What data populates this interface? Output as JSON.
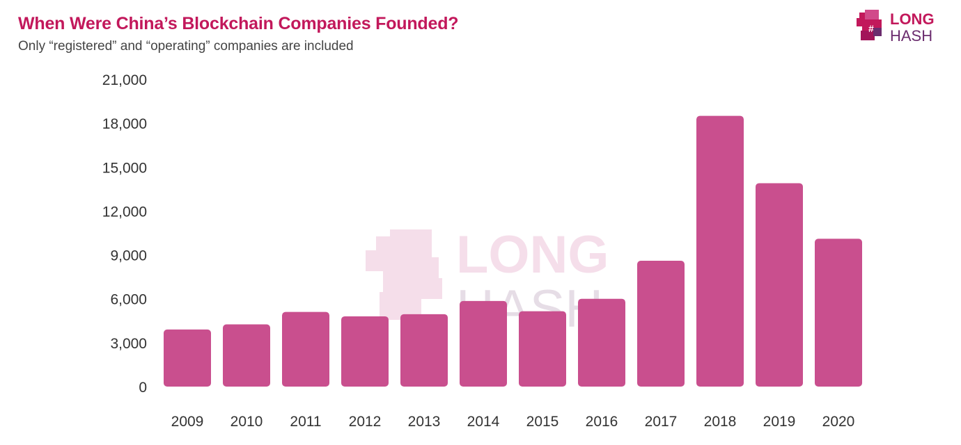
{
  "chart_data": {
    "type": "bar",
    "title": "When Were China’s Blockchain Companies Founded?",
    "subtitle": "Only “registered” and “operating” companies are included",
    "categories": [
      "2009",
      "2010",
      "2011",
      "2012",
      "2013",
      "2014",
      "2015",
      "2016",
      "2017",
      "2018",
      "2019",
      "2020"
    ],
    "values": [
      3900,
      4250,
      5100,
      4800,
      4950,
      5850,
      5150,
      6000,
      8600,
      18500,
      13900,
      10100
    ],
    "ylim": [
      0,
      21000
    ],
    "yticks": [
      0,
      3000,
      6000,
      9000,
      12000,
      15000,
      18000,
      21000
    ],
    "ytick_labels": [
      "0",
      "3,000",
      "6,000",
      "9,000",
      "12,000",
      "15,000",
      "18,000",
      "21,000"
    ],
    "xlabel": "",
    "ylabel": "",
    "grid": false,
    "bar_color": "#c94f8e",
    "title_color": "#c2185b"
  },
  "branding": {
    "logo_line1": "LONG",
    "logo_line2": "HASH",
    "logo_color": "#c2185b",
    "logo_secondary_color": "#6b2c6e",
    "watermark_line1": "LONG",
    "watermark_line2": "HASH"
  }
}
